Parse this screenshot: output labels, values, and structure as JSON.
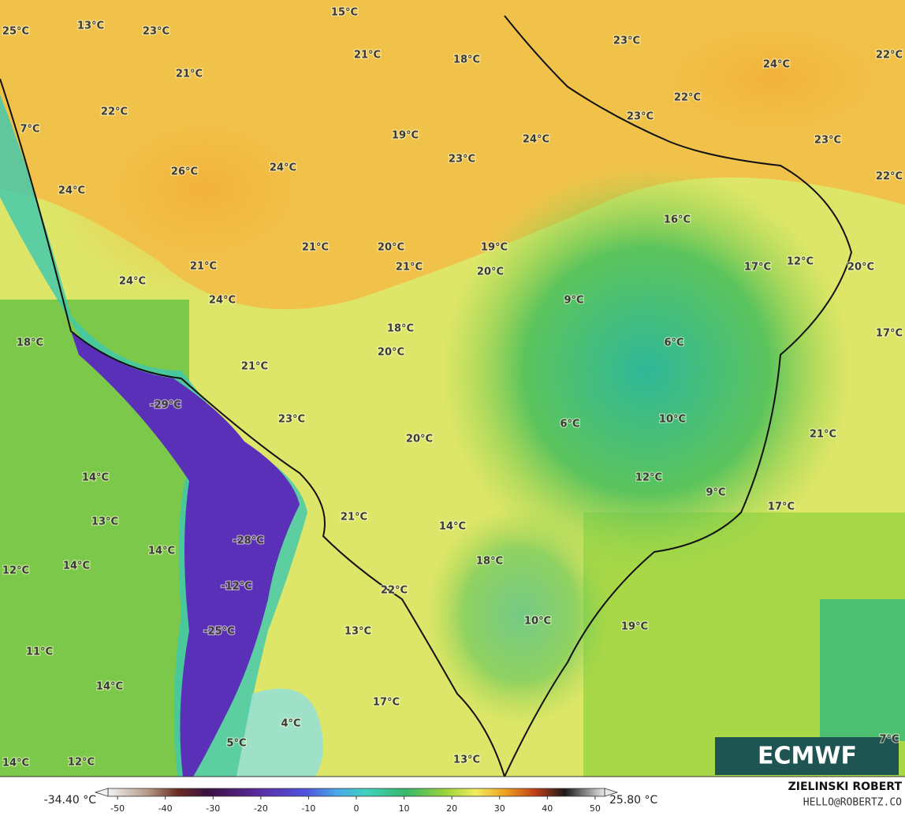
{
  "logo": "ECMWF",
  "credit": {
    "author": "ZIELINSKI ROBERT",
    "email": "HELLO@ROBERTZ.CO"
  },
  "colorbar": {
    "min_label": "-34.40 °C",
    "max_label": "25.80 °C",
    "range": [
      -52,
      52
    ],
    "ticks": [
      -50,
      -40,
      -30,
      -20,
      -10,
      0,
      10,
      20,
      30,
      40,
      50
    ]
  },
  "labels": [
    "25°C",
    "13°C",
    "23°C",
    "15°C",
    "21°C",
    "18°C",
    "23°C",
    "24°C",
    "22°C",
    "21°C",
    "22°C",
    "22°C",
    "23°C",
    "7°C",
    "19°C",
    "24°C",
    "23°C",
    "23°C",
    "26°C",
    "24°C",
    "22°C",
    "24°C",
    "16°C",
    "21°C",
    "21°C",
    "20°C",
    "19°C",
    "21°C",
    "20°C",
    "17°C",
    "12°C",
    "20°C",
    "24°C",
    "24°C",
    "9°C",
    "18°C",
    "17°C",
    "18°C",
    "6°C",
    "20°C",
    "21°C",
    "-29°C",
    "23°C",
    "6°C",
    "10°C",
    "20°C",
    "21°C",
    "14°C",
    "12°C",
    "9°C",
    "17°C",
    "21°C",
    "13°C",
    "14°C",
    "14°C",
    "-28°C",
    "14°C",
    "12°C",
    "18°C",
    "-12°C",
    "22°C",
    "13°C",
    "10°C",
    "19°C",
    "-25°C",
    "11°C",
    "14°C",
    "17°C",
    "4°C",
    "7°C",
    "5°C",
    "13°C",
    "14°C",
    "12°C"
  ]
}
